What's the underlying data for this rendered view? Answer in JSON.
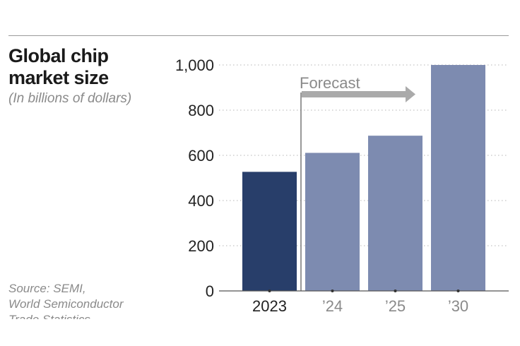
{
  "title_lines": [
    "Global chip",
    "market size"
  ],
  "subtitle": "(In billions of dollars)",
  "source_lines": [
    "Source: SEMI,",
    "World Semiconductor",
    "Trade Statistics"
  ],
  "chart_data": {
    "type": "bar",
    "title": "Global chip market size",
    "subtitle": "(In billions of dollars)",
    "categories": [
      "2023",
      "’24",
      "’25",
      "’30"
    ],
    "values": [
      527,
      611,
      687,
      1000
    ],
    "bar_colors": [
      "#283e6a",
      "#7d8bb0",
      "#7d8bb0",
      "#7d8bb0"
    ],
    "ylim": [
      0,
      1000
    ],
    "yticks": [
      0,
      200,
      400,
      600,
      800,
      1000
    ],
    "ytick_labels": [
      "0",
      "200",
      "400",
      "600",
      "800",
      "1,000"
    ],
    "grid": true,
    "annotation": {
      "text": "Forecast",
      "from_category_index": 1,
      "color": "#9a9a9a"
    }
  }
}
